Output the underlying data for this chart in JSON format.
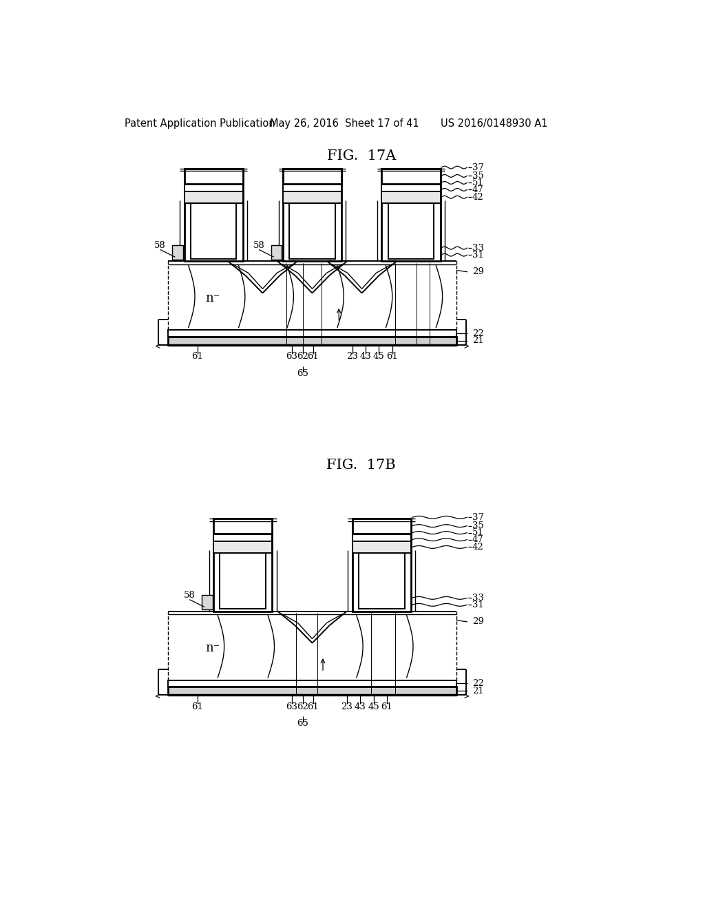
{
  "header_left": "Patent Application Publication",
  "header_mid": "May 26, 2016  Sheet 17 of 41",
  "header_right": "US 2016/0148930 A1",
  "fig_a_title": "FIG.  17A",
  "fig_b_title": "FIG.  17B",
  "background_color": "#ffffff",
  "line_color": "#000000",
  "label_fontsize": 9.5,
  "header_fontsize": 10.5,
  "title_fontsize": 15
}
